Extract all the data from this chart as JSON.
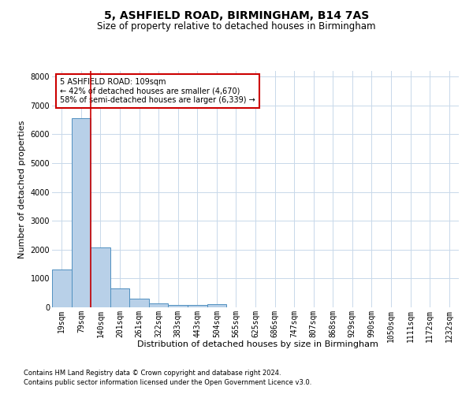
{
  "title1": "5, ASHFIELD ROAD, BIRMINGHAM, B14 7AS",
  "title2": "Size of property relative to detached houses in Birmingham",
  "xlabel": "Distribution of detached houses by size in Birmingham",
  "ylabel": "Number of detached properties",
  "bar_labels": [
    "19sqm",
    "79sqm",
    "140sqm",
    "201sqm",
    "261sqm",
    "322sqm",
    "383sqm",
    "443sqm",
    "504sqm",
    "565sqm",
    "625sqm",
    "686sqm",
    "747sqm",
    "807sqm",
    "868sqm",
    "929sqm",
    "990sqm",
    "1050sqm",
    "1111sqm",
    "1172sqm",
    "1232sqm"
  ],
  "bar_values": [
    1300,
    6550,
    2075,
    650,
    290,
    150,
    95,
    75,
    110,
    0,
    0,
    0,
    0,
    0,
    0,
    0,
    0,
    0,
    0,
    0,
    0
  ],
  "bar_color": "#b8d0e8",
  "bar_edge_color": "#5090c0",
  "vline_color": "#cc0000",
  "annotation_text": "5 ASHFIELD ROAD: 109sqm\n← 42% of detached houses are smaller (4,670)\n58% of semi-detached houses are larger (6,339) →",
  "annotation_box_color": "#ffffff",
  "annotation_box_edge": "#cc0000",
  "ylim": [
    0,
    8200
  ],
  "yticks": [
    0,
    1000,
    2000,
    3000,
    4000,
    5000,
    6000,
    7000,
    8000
  ],
  "footnote1": "Contains HM Land Registry data © Crown copyright and database right 2024.",
  "footnote2": "Contains public sector information licensed under the Open Government Licence v3.0.",
  "bg_color": "#ffffff",
  "grid_color": "#c8d8ea",
  "title1_fontsize": 10,
  "title2_fontsize": 8.5,
  "axis_label_fontsize": 8,
  "tick_fontsize": 7,
  "footnote_fontsize": 6
}
